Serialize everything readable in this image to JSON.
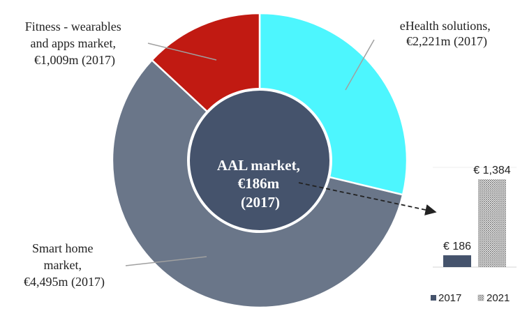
{
  "chart_data": [
    {
      "type": "pie",
      "style": "donut",
      "center_label_lines": [
        "AAL market,",
        "€186m",
        "(2017)"
      ],
      "categories": [
        "eHealth solutions",
        "Smart home market",
        "Fitness - wearables and apps market"
      ],
      "values": [
        2221,
        4495,
        1009
      ],
      "units": "€m",
      "year": "2017",
      "label_lines": [
        [
          "eHealth solutions,",
          "€2,221m (2017)"
        ],
        [
          "Smart home",
          "market,",
          "€4,495m (2017)"
        ],
        [
          "Fitness - wearables",
          "and apps market,",
          "€1,009m (2017)"
        ]
      ],
      "colors": [
        "#4DF6FE",
        "#6A7689",
        "#C11A12"
      ],
      "center_color": "#45536C"
    },
    {
      "type": "bar",
      "categories": [
        "2017",
        "2021"
      ],
      "values": [
        186,
        1384
      ],
      "data_labels": [
        "€ 186",
        "€ 1,384"
      ],
      "legend": [
        "2017",
        "2021"
      ],
      "legend_position": "bottom",
      "colors": [
        "#45536C",
        "hatched"
      ]
    }
  ]
}
